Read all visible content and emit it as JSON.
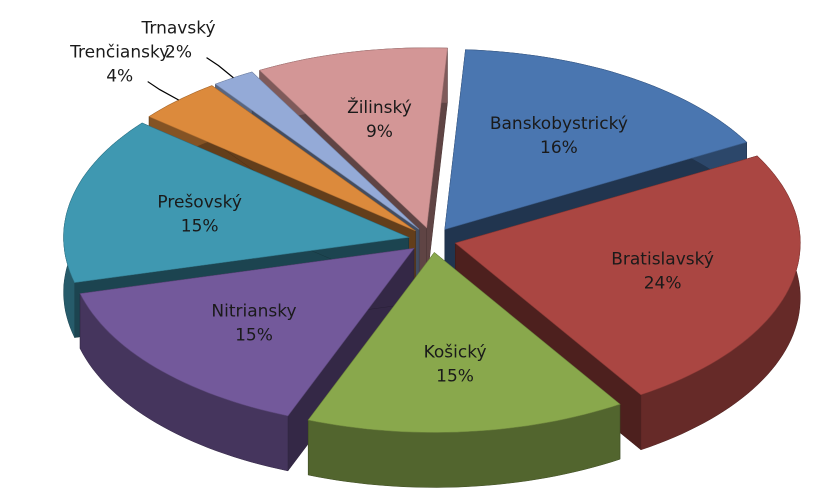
{
  "chart_data": {
    "type": "pie3d",
    "categories": [
      "Banskobystrický",
      "Bratislavský",
      "Košický",
      "Nitriansky",
      "Prešovský",
      "Trenčiansky",
      "Trnavský",
      "Žilinský"
    ],
    "values": [
      16,
      24,
      15,
      15,
      15,
      4,
      2,
      9
    ],
    "value_labels": [
      "16%",
      "24%",
      "15%",
      "15%",
      "15%",
      "4%",
      "2%",
      "9%"
    ],
    "colors": [
      "#4a76b0",
      "#aa4642",
      "#89a84c",
      "#73599b",
      "#3f98b1",
      "#dc8a3c",
      "#94aad7",
      "#d39696"
    ]
  }
}
